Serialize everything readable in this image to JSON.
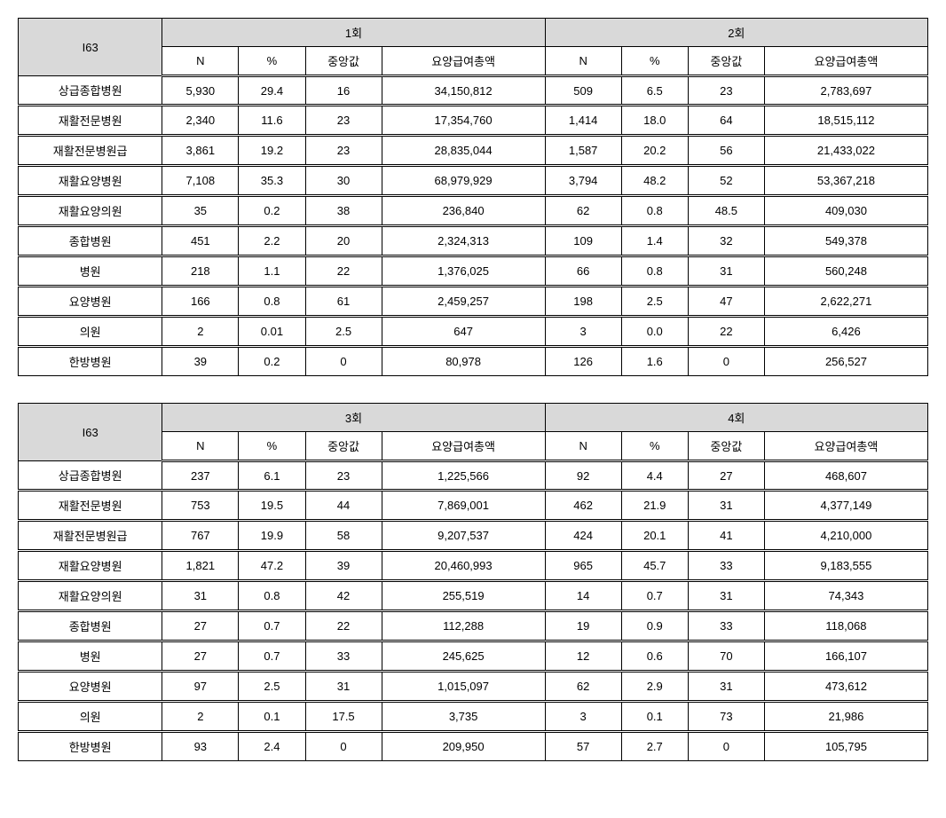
{
  "table1": {
    "title_col": "I63",
    "group_a": "1회",
    "group_b": "2회",
    "subheaders": [
      "N",
      "%",
      "중앙값",
      "요양급여총액",
      "N",
      "%",
      "중앙값",
      "요양급여총액"
    ],
    "rows": [
      {
        "label": "상급종합병원",
        "v": [
          "5,930",
          "29.4",
          "16",
          "34,150,812",
          "509",
          "6.5",
          "23",
          "2,783,697"
        ]
      },
      {
        "label": "재활전문병원",
        "v": [
          "2,340",
          "11.6",
          "23",
          "17,354,760",
          "1,414",
          "18.0",
          "64",
          "18,515,112"
        ]
      },
      {
        "label": "재활전문병원급",
        "v": [
          "3,861",
          "19.2",
          "23",
          "28,835,044",
          "1,587",
          "20.2",
          "56",
          "21,433,022"
        ]
      },
      {
        "label": "재활요양병원",
        "v": [
          "7,108",
          "35.3",
          "30",
          "68,979,929",
          "3,794",
          "48.2",
          "52",
          "53,367,218"
        ]
      },
      {
        "label": "재활요양의원",
        "v": [
          "35",
          "0.2",
          "38",
          "236,840",
          "62",
          "0.8",
          "48.5",
          "409,030"
        ]
      },
      {
        "label": "종합병원",
        "v": [
          "451",
          "2.2",
          "20",
          "2,324,313",
          "109",
          "1.4",
          "32",
          "549,378"
        ]
      },
      {
        "label": "병원",
        "v": [
          "218",
          "1.1",
          "22",
          "1,376,025",
          "66",
          "0.8",
          "31",
          "560,248"
        ]
      },
      {
        "label": "요양병원",
        "v": [
          "166",
          "0.8",
          "61",
          "2,459,257",
          "198",
          "2.5",
          "47",
          "2,622,271"
        ]
      },
      {
        "label": "의원",
        "v": [
          "2",
          "0.01",
          "2.5",
          "647",
          "3",
          "0.0",
          "22",
          "6,426"
        ]
      },
      {
        "label": "한방병원",
        "v": [
          "39",
          "0.2",
          "0",
          "80,978",
          "126",
          "1.6",
          "0",
          "256,527"
        ]
      }
    ]
  },
  "table2": {
    "title_col": "I63",
    "group_a": "3회",
    "group_b": "4회",
    "subheaders": [
      "N",
      "%",
      "중앙값",
      "요양급여총액",
      "N",
      "%",
      "중앙값",
      "요양급여총액"
    ],
    "rows": [
      {
        "label": "상급종합병원",
        "v": [
          "237",
          "6.1",
          "23",
          "1,225,566",
          "92",
          "4.4",
          "27",
          "468,607"
        ]
      },
      {
        "label": "재활전문병원",
        "v": [
          "753",
          "19.5",
          "44",
          "7,869,001",
          "462",
          "21.9",
          "31",
          "4,377,149"
        ]
      },
      {
        "label": "재활전문병원급",
        "v": [
          "767",
          "19.9",
          "58",
          "9,207,537",
          "424",
          "20.1",
          "41",
          "4,210,000"
        ]
      },
      {
        "label": "재활요양병원",
        "v": [
          "1,821",
          "47.2",
          "39",
          "20,460,993",
          "965",
          "45.7",
          "33",
          "9,183,555"
        ]
      },
      {
        "label": "재활요양의원",
        "v": [
          "31",
          "0.8",
          "42",
          "255,519",
          "14",
          "0.7",
          "31",
          "74,343"
        ]
      },
      {
        "label": "종합병원",
        "v": [
          "27",
          "0.7",
          "22",
          "112,288",
          "19",
          "0.9",
          "33",
          "118,068"
        ]
      },
      {
        "label": "병원",
        "v": [
          "27",
          "0.7",
          "33",
          "245,625",
          "12",
          "0.6",
          "70",
          "166,107"
        ]
      },
      {
        "label": "요양병원",
        "v": [
          "97",
          "2.5",
          "31",
          "1,015,097",
          "62",
          "2.9",
          "31",
          "473,612"
        ]
      },
      {
        "label": "의원",
        "v": [
          "2",
          "0.1",
          "17.5",
          "3,735",
          "3",
          "0.1",
          "73",
          "21,986"
        ]
      },
      {
        "label": "한방병원",
        "v": [
          "93",
          "2.4",
          "0",
          "209,950",
          "57",
          "2.7",
          "0",
          "105,795"
        ]
      }
    ]
  }
}
